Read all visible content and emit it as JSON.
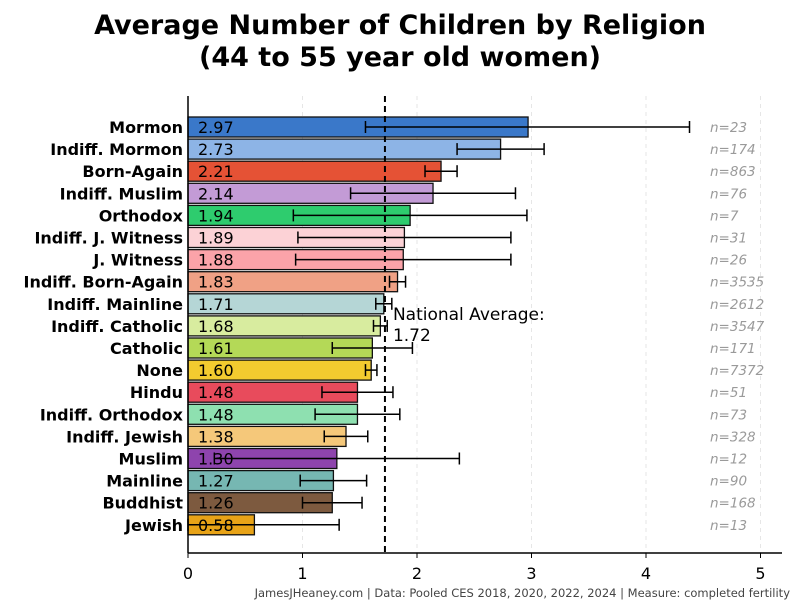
{
  "chart_data": {
    "type": "bar",
    "orientation": "horizontal",
    "title": "Average Number of Children by Religion",
    "subtitle": "(44 to 55 year old women)",
    "xlim": [
      0,
      5.2
    ],
    "xticks": [
      "0",
      "1",
      "2",
      "3",
      "4",
      "5"
    ],
    "grid": "vertical-dashed",
    "reference_line": {
      "value": 1.72,
      "label_line1": "National Average:",
      "label_line2": "1.72"
    },
    "bars": [
      {
        "category": "Mormon",
        "value": 2.97,
        "label": "2.97",
        "err_low": 1.55,
        "err_high": 4.38,
        "n": "n=23",
        "color": "#3a78c9"
      },
      {
        "category": "Indiff. Mormon",
        "value": 2.73,
        "label": "2.73",
        "err_low": 2.35,
        "err_high": 3.11,
        "n": "n=174",
        "color": "#8db4e6"
      },
      {
        "category": "Born-Again",
        "value": 2.21,
        "label": "2.21",
        "err_low": 2.07,
        "err_high": 2.35,
        "n": "n=863",
        "color": "#e55235"
      },
      {
        "category": "Indiff. Muslim",
        "value": 2.14,
        "label": "2.14",
        "err_low": 1.42,
        "err_high": 2.86,
        "n": "n=76",
        "color": "#c39bd6"
      },
      {
        "category": "Orthodox",
        "value": 1.94,
        "label": "1.94",
        "err_low": 0.92,
        "err_high": 2.96,
        "n": "n=7",
        "color": "#2ecc6e"
      },
      {
        "category": "Indiff. J. Witness",
        "value": 1.89,
        "label": "1.89",
        "err_low": 0.96,
        "err_high": 2.82,
        "n": "n=31",
        "color": "#fcd2d6"
      },
      {
        "category": "J. Witness",
        "value": 1.88,
        "label": "1.88",
        "err_low": 0.94,
        "err_high": 2.82,
        "n": "n=26",
        "color": "#fba3a9"
      },
      {
        "category": "Indiff. Born-Again",
        "value": 1.83,
        "label": "1.83",
        "err_low": 1.76,
        "err_high": 1.9,
        "n": "n=3535",
        "color": "#f0a185"
      },
      {
        "category": "Indiff. Mainline",
        "value": 1.71,
        "label": "1.71",
        "err_low": 1.64,
        "err_high": 1.78,
        "n": "n=2612",
        "color": "#b5d6d6"
      },
      {
        "category": "Indiff. Catholic",
        "value": 1.68,
        "label": "1.68",
        "err_low": 1.62,
        "err_high": 1.74,
        "n": "n=3547",
        "color": "#d8ec9f"
      },
      {
        "category": "Catholic",
        "value": 1.61,
        "label": "1.61",
        "err_low": 1.26,
        "err_high": 1.96,
        "n": "n=171",
        "color": "#b4d957"
      },
      {
        "category": "None",
        "value": 1.6,
        "label": "1.60",
        "err_low": 1.55,
        "err_high": 1.65,
        "n": "n=7372",
        "color": "#f3cb2f"
      },
      {
        "category": "Hindu",
        "value": 1.48,
        "label": "1.48",
        "err_low": 1.17,
        "err_high": 1.79,
        "n": "n=51",
        "color": "#e84b5c"
      },
      {
        "category": "Indiff. Orthodox",
        "value": 1.48,
        "label": "1.48",
        "err_low": 1.11,
        "err_high": 1.85,
        "n": "n=73",
        "color": "#8ee0b0"
      },
      {
        "category": "Indiff. Jewish",
        "value": 1.38,
        "label": "1.38",
        "err_low": 1.19,
        "err_high": 1.57,
        "n": "n=328",
        "color": "#f5c87a"
      },
      {
        "category": "Muslim",
        "value": 1.3,
        "label": "1.30",
        "err_low": 0.23,
        "err_high": 2.37,
        "n": "n=12",
        "color": "#8e44ad"
      },
      {
        "category": "Mainline",
        "value": 1.27,
        "label": "1.27",
        "err_low": 0.98,
        "err_high": 1.56,
        "n": "n=90",
        "color": "#76b7b2"
      },
      {
        "category": "Buddhist",
        "value": 1.26,
        "label": "1.26",
        "err_low": 1.0,
        "err_high": 1.52,
        "n": "n=168",
        "color": "#7d5a3f"
      },
      {
        "category": "Jewish",
        "value": 0.58,
        "label": "0.58",
        "err_low": 0.0,
        "err_high": 1.32,
        "n": "n=13",
        "color": "#e8a317"
      }
    ],
    "footer": "JamesJHeaney.com | Data: Pooled CES 2018, 2020, 2022, 2024 | Measure: completed fertility"
  }
}
